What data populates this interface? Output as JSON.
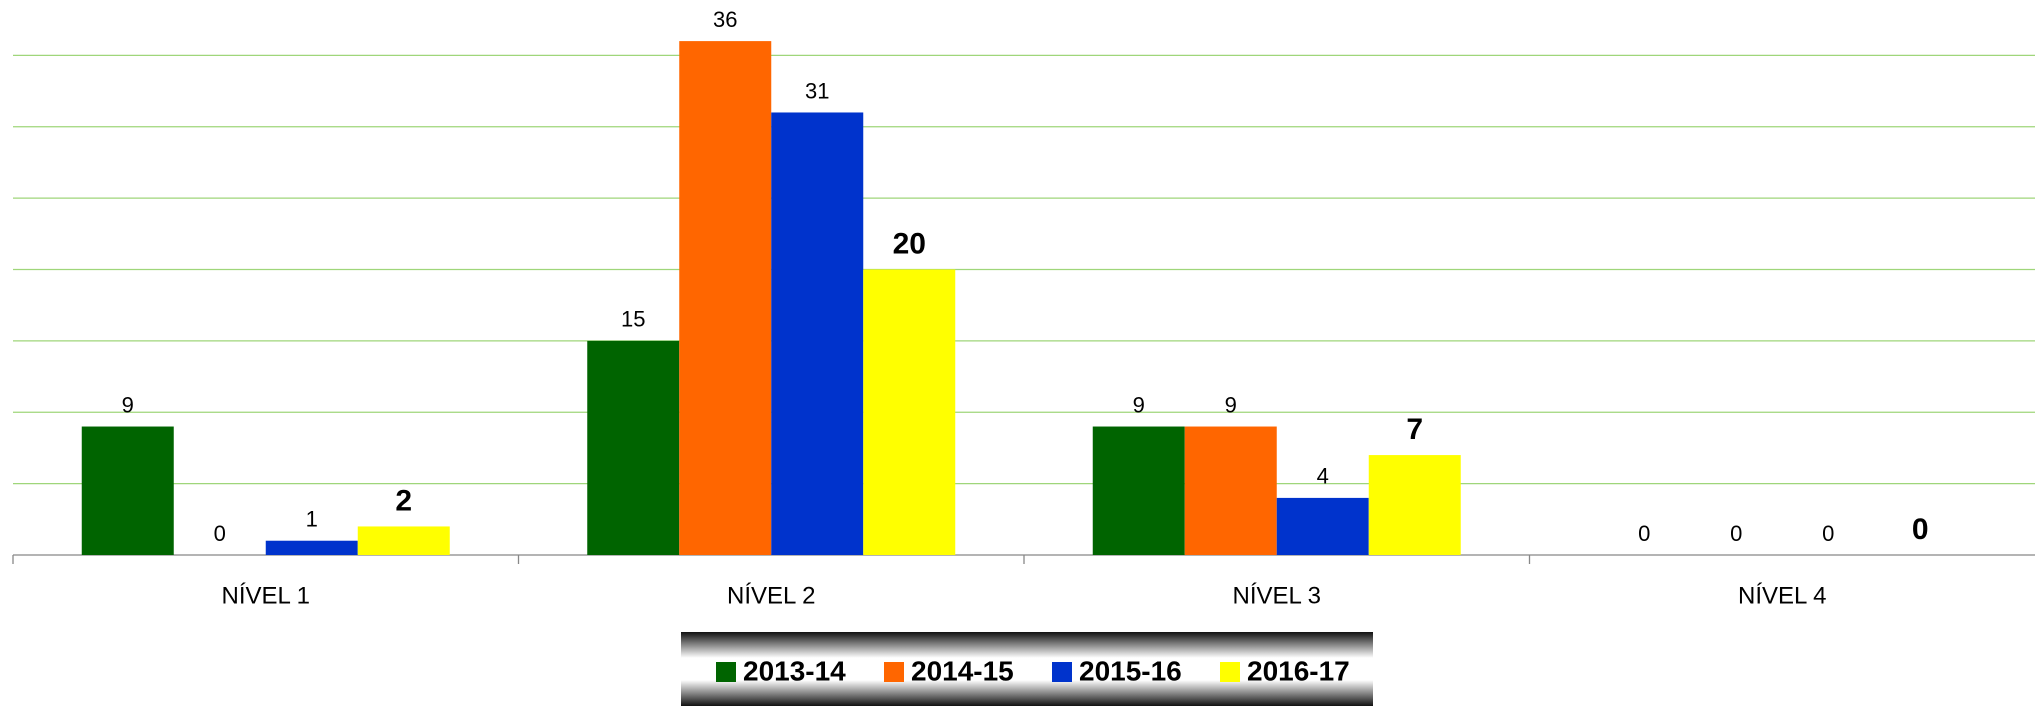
{
  "chart_data": {
    "type": "bar",
    "categories": [
      "NÍVEL 1",
      "NÍVEL 2",
      "NÍVEL 3",
      "NÍVEL 4"
    ],
    "series": [
      {
        "name": "2013-14",
        "color": "#006400",
        "values": [
          9,
          15,
          9,
          0
        ]
      },
      {
        "name": "2014-15",
        "color": "#ff6600",
        "values": [
          0,
          36,
          9,
          0
        ]
      },
      {
        "name": "2015-16",
        "color": "#0033cc",
        "values": [
          1,
          31,
          4,
          0
        ]
      },
      {
        "name": "2016-17",
        "color": "#ffff00",
        "values": [
          2,
          20,
          7,
          0
        ]
      }
    ],
    "ylim": [
      0,
      40
    ],
    "yticks": [
      0,
      5,
      10,
      15,
      20,
      25,
      30,
      35
    ],
    "grid": true,
    "legend": "bottom"
  }
}
